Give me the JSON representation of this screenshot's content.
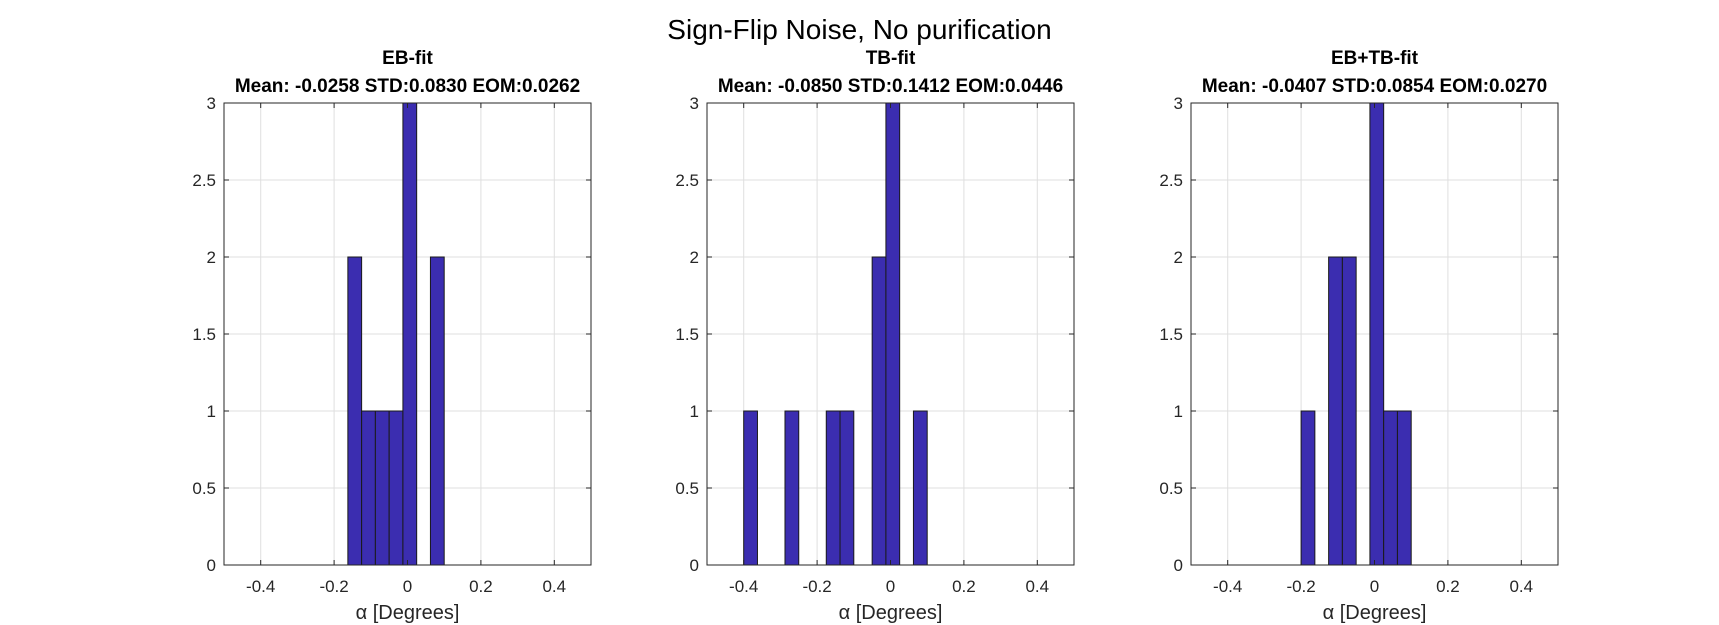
{
  "figure_title": "Sign-Flip Noise, No purification",
  "colors": {
    "bar_fill": "#3b2db0",
    "bar_edge": "#1a1a1a",
    "axis": "#262626",
    "grid": "#dfdfdf"
  },
  "chart_data": [
    {
      "type": "bar",
      "title": "EB-fit",
      "subtitle": "Mean: -0.0258 STD:0.0830 EOM:0.0262",
      "xlabel": "α [Degrees]",
      "ylabel": "",
      "xlim": [
        -0.5,
        0.5
      ],
      "ylim": [
        0,
        3
      ],
      "xticks": [
        "-0.4",
        "-0.2",
        "0",
        "0.2",
        "0.4"
      ],
      "yticks": [
        "0",
        "0.5",
        "1",
        "1.5",
        "2",
        "2.5",
        "3"
      ],
      "grid": true,
      "bin_width": 0.0375,
      "bins": [
        {
          "left": -0.1625,
          "count": 2
        },
        {
          "left": -0.125,
          "count": 1
        },
        {
          "left": -0.0875,
          "count": 1
        },
        {
          "left": -0.05,
          "count": 1
        },
        {
          "left": -0.0125,
          "count": 3
        },
        {
          "left": 0.0625,
          "count": 2
        }
      ]
    },
    {
      "type": "bar",
      "title": "TB-fit",
      "subtitle": "Mean: -0.0850 STD:0.1412 EOM:0.0446",
      "xlabel": "α [Degrees]",
      "ylabel": "",
      "xlim": [
        -0.5,
        0.5
      ],
      "ylim": [
        0,
        3
      ],
      "xticks": [
        "-0.4",
        "-0.2",
        "0",
        "0.2",
        "0.4"
      ],
      "yticks": [
        "0",
        "0.5",
        "1",
        "1.5",
        "2",
        "2.5",
        "3"
      ],
      "grid": true,
      "bin_width": 0.0375,
      "bins": [
        {
          "left": -0.4,
          "count": 1
        },
        {
          "left": -0.2875,
          "count": 1
        },
        {
          "left": -0.175,
          "count": 1
        },
        {
          "left": -0.1375,
          "count": 1
        },
        {
          "left": -0.05,
          "count": 2
        },
        {
          "left": -0.0125,
          "count": 3
        },
        {
          "left": 0.0625,
          "count": 1
        }
      ]
    },
    {
      "type": "bar",
      "title": "EB+TB-fit",
      "subtitle": "Mean: -0.0407 STD:0.0854 EOM:0.0270",
      "xlabel": "α [Degrees]",
      "ylabel": "",
      "xlim": [
        -0.5,
        0.5
      ],
      "ylim": [
        0,
        3
      ],
      "xticks": [
        "-0.4",
        "-0.2",
        "0",
        "0.2",
        "0.4"
      ],
      "yticks": [
        "0",
        "0.5",
        "1",
        "1.5",
        "2",
        "2.5",
        "3"
      ],
      "grid": true,
      "bin_width": 0.0375,
      "bins": [
        {
          "left": -0.2,
          "count": 1
        },
        {
          "left": -0.125,
          "count": 2
        },
        {
          "left": -0.0875,
          "count": 2
        },
        {
          "left": -0.0125,
          "count": 3
        },
        {
          "left": 0.025,
          "count": 1
        },
        {
          "left": 0.0625,
          "count": 1
        }
      ]
    }
  ]
}
